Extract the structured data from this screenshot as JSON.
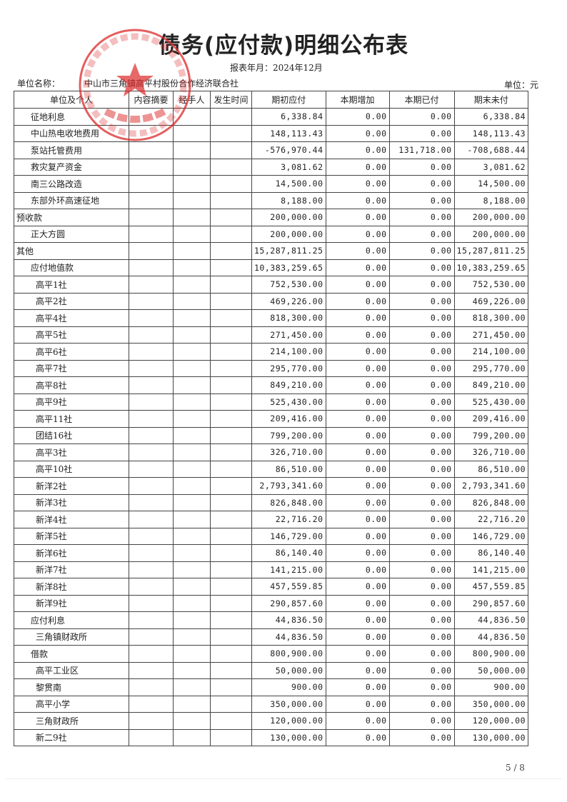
{
  "title": "债务(应付款)明细公布表",
  "period": "报表年月：2024年12月",
  "unit_label": "单位名称：",
  "unit_name": "中山市三角镇高平村股份合作经济联合社",
  "currency": "单位：元",
  "stamp": {
    "text": "中山市三角镇高平村股份合作经济联合社",
    "color": "#dc2828"
  },
  "columns": [
    "单位及个人",
    "内容摘要",
    "经手人",
    "发生时间",
    "期初应付",
    "本期增加",
    "本期已付",
    "期末未付"
  ],
  "rows": [
    {
      "name": "征地利息",
      "level": 1,
      "v": [
        "6,338.84",
        "0.00",
        "0.00",
        "6,338.84"
      ]
    },
    {
      "name": "中山热电收地费用",
      "level": 1,
      "v": [
        "148,113.43",
        "0.00",
        "0.00",
        "148,113.43"
      ]
    },
    {
      "name": "泵站托管费用",
      "level": 1,
      "v": [
        "-576,970.44",
        "0.00",
        "131,718.00",
        "-708,688.44"
      ]
    },
    {
      "name": "救灾复产资金",
      "level": 1,
      "v": [
        "3,081.62",
        "0.00",
        "0.00",
        "3,081.62"
      ]
    },
    {
      "name": "南三公路改造",
      "level": 1,
      "v": [
        "14,500.00",
        "0.00",
        "0.00",
        "14,500.00"
      ]
    },
    {
      "name": "东部外环高速征地",
      "level": 1,
      "v": [
        "8,188.00",
        "0.00",
        "0.00",
        "8,188.00"
      ]
    },
    {
      "name": "预收款",
      "level": 0,
      "v": [
        "200,000.00",
        "0.00",
        "0.00",
        "200,000.00"
      ]
    },
    {
      "name": "正大方圆",
      "level": 1,
      "v": [
        "200,000.00",
        "0.00",
        "0.00",
        "200,000.00"
      ]
    },
    {
      "name": "其他",
      "level": 0,
      "v": [
        "15,287,811.25",
        "0.00",
        "0.00",
        "15,287,811.25"
      ]
    },
    {
      "name": "应付地值款",
      "level": 1,
      "v": [
        "10,383,259.65",
        "0.00",
        "0.00",
        "10,383,259.65"
      ]
    },
    {
      "name": "高平1社",
      "level": 2,
      "v": [
        "752,530.00",
        "0.00",
        "0.00",
        "752,530.00"
      ]
    },
    {
      "name": "高平2社",
      "level": 2,
      "v": [
        "469,226.00",
        "0.00",
        "0.00",
        "469,226.00"
      ]
    },
    {
      "name": "高平4社",
      "level": 2,
      "v": [
        "818,300.00",
        "0.00",
        "0.00",
        "818,300.00"
      ]
    },
    {
      "name": "高平5社",
      "level": 2,
      "v": [
        "271,450.00",
        "0.00",
        "0.00",
        "271,450.00"
      ]
    },
    {
      "name": "高平6社",
      "level": 2,
      "v": [
        "214,100.00",
        "0.00",
        "0.00",
        "214,100.00"
      ]
    },
    {
      "name": "高平7社",
      "level": 2,
      "v": [
        "295,770.00",
        "0.00",
        "0.00",
        "295,770.00"
      ]
    },
    {
      "name": "高平8社",
      "level": 2,
      "v": [
        "849,210.00",
        "0.00",
        "0.00",
        "849,210.00"
      ]
    },
    {
      "name": "高平9社",
      "level": 2,
      "v": [
        "525,430.00",
        "0.00",
        "0.00",
        "525,430.00"
      ]
    },
    {
      "name": "高平11社",
      "level": 2,
      "v": [
        "209,416.00",
        "0.00",
        "0.00",
        "209,416.00"
      ]
    },
    {
      "name": "团结16社",
      "level": 2,
      "v": [
        "799,200.00",
        "0.00",
        "0.00",
        "799,200.00"
      ]
    },
    {
      "name": "高平3社",
      "level": 2,
      "v": [
        "326,710.00",
        "0.00",
        "0.00",
        "326,710.00"
      ]
    },
    {
      "name": "高平10社",
      "level": 2,
      "v": [
        "86,510.00",
        "0.00",
        "0.00",
        "86,510.00"
      ]
    },
    {
      "name": "新洋2社",
      "level": 2,
      "v": [
        "2,793,341.60",
        "0.00",
        "0.00",
        "2,793,341.60"
      ]
    },
    {
      "name": "新洋3社",
      "level": 2,
      "v": [
        "826,848.00",
        "0.00",
        "0.00",
        "826,848.00"
      ]
    },
    {
      "name": "新洋4社",
      "level": 2,
      "v": [
        "22,716.20",
        "0.00",
        "0.00",
        "22,716.20"
      ]
    },
    {
      "name": "新洋5社",
      "level": 2,
      "v": [
        "146,729.00",
        "0.00",
        "0.00",
        "146,729.00"
      ]
    },
    {
      "name": "新洋6社",
      "level": 2,
      "v": [
        "86,140.40",
        "0.00",
        "0.00",
        "86,140.40"
      ]
    },
    {
      "name": "新洋7社",
      "level": 2,
      "v": [
        "141,215.00",
        "0.00",
        "0.00",
        "141,215.00"
      ]
    },
    {
      "name": "新洋8社",
      "level": 2,
      "v": [
        "457,559.85",
        "0.00",
        "0.00",
        "457,559.85"
      ]
    },
    {
      "name": "新洋9社",
      "level": 2,
      "v": [
        "290,857.60",
        "0.00",
        "0.00",
        "290,857.60"
      ]
    },
    {
      "name": "应付利息",
      "level": 1,
      "v": [
        "44,836.50",
        "0.00",
        "0.00",
        "44,836.50"
      ]
    },
    {
      "name": "三角镇财政所",
      "level": 2,
      "v": [
        "44,836.50",
        "0.00",
        "0.00",
        "44,836.50"
      ]
    },
    {
      "name": "借款",
      "level": 1,
      "v": [
        "800,900.00",
        "0.00",
        "0.00",
        "800,900.00"
      ]
    },
    {
      "name": "高平工业区",
      "level": 2,
      "v": [
        "50,000.00",
        "0.00",
        "0.00",
        "50,000.00"
      ]
    },
    {
      "name": "黎贯南",
      "level": 2,
      "v": [
        "900.00",
        "0.00",
        "0.00",
        "900.00"
      ]
    },
    {
      "name": "高平小学",
      "level": 2,
      "v": [
        "350,000.00",
        "0.00",
        "0.00",
        "350,000.00"
      ]
    },
    {
      "name": "三角财政所",
      "level": 2,
      "v": [
        "120,000.00",
        "0.00",
        "0.00",
        "120,000.00"
      ]
    },
    {
      "name": "新二9社",
      "level": 2,
      "v": [
        "130,000.00",
        "0.00",
        "0.00",
        "130,000.00"
      ]
    }
  ],
  "page_number": "5 / 8"
}
